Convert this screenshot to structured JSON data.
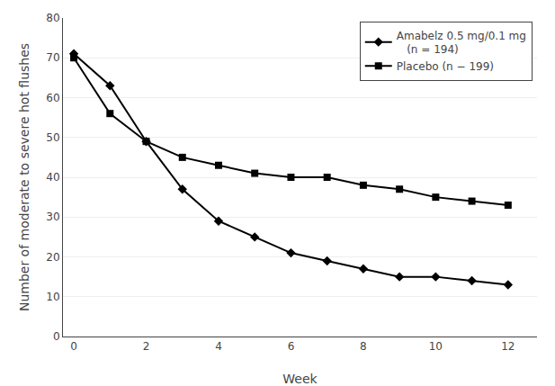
{
  "chart_data": {
    "type": "line",
    "x": [
      0,
      1,
      2,
      3,
      4,
      5,
      6,
      7,
      8,
      9,
      10,
      11,
      12
    ],
    "series": [
      {
        "name": "Amabelz 0.5 mg/0.1 mg\n   (n = 194)",
        "color": "#000000",
        "marker": "diamond",
        "values": [
          71,
          63,
          49,
          37,
          29,
          25,
          21,
          19,
          17,
          15,
          15,
          14,
          13
        ]
      },
      {
        "name": "Placebo (n − 199)",
        "color": "#000000",
        "marker": "square",
        "values": [
          70,
          56,
          49,
          45,
          43,
          41,
          40,
          40,
          38,
          37,
          35,
          34,
          33
        ]
      }
    ],
    "xlabel": "Week",
    "ylabel": "Number of moderate to severe hot flushes",
    "xlim": [
      -0.3,
      12.8
    ],
    "xticks": [
      0,
      2,
      4,
      6,
      8,
      10,
      12
    ],
    "ylim": [
      0,
      80
    ],
    "yticks": [
      0,
      10,
      20,
      30,
      40,
      50,
      60,
      70,
      80
    ],
    "grid": true,
    "legend": "upper right"
  }
}
